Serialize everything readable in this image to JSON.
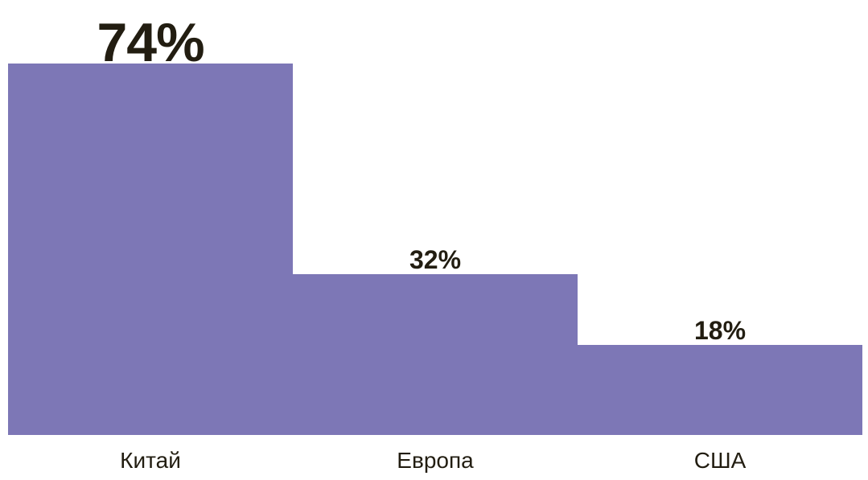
{
  "chart_data": {
    "type": "bar",
    "categories": [
      "Китай",
      "Европа",
      "США"
    ],
    "values": [
      74,
      32,
      18
    ],
    "value_labels": [
      "74%",
      "32%",
      "18%"
    ],
    "title": "",
    "xlabel": "",
    "ylabel": "",
    "ylim": [
      0,
      86
    ],
    "grid": false,
    "legend": "none",
    "bar_gap": 0,
    "highlighted_value_index": 0,
    "colors": {
      "bar": "#7d77b6",
      "text": "#221d11",
      "background": "#ffffff"
    }
  }
}
